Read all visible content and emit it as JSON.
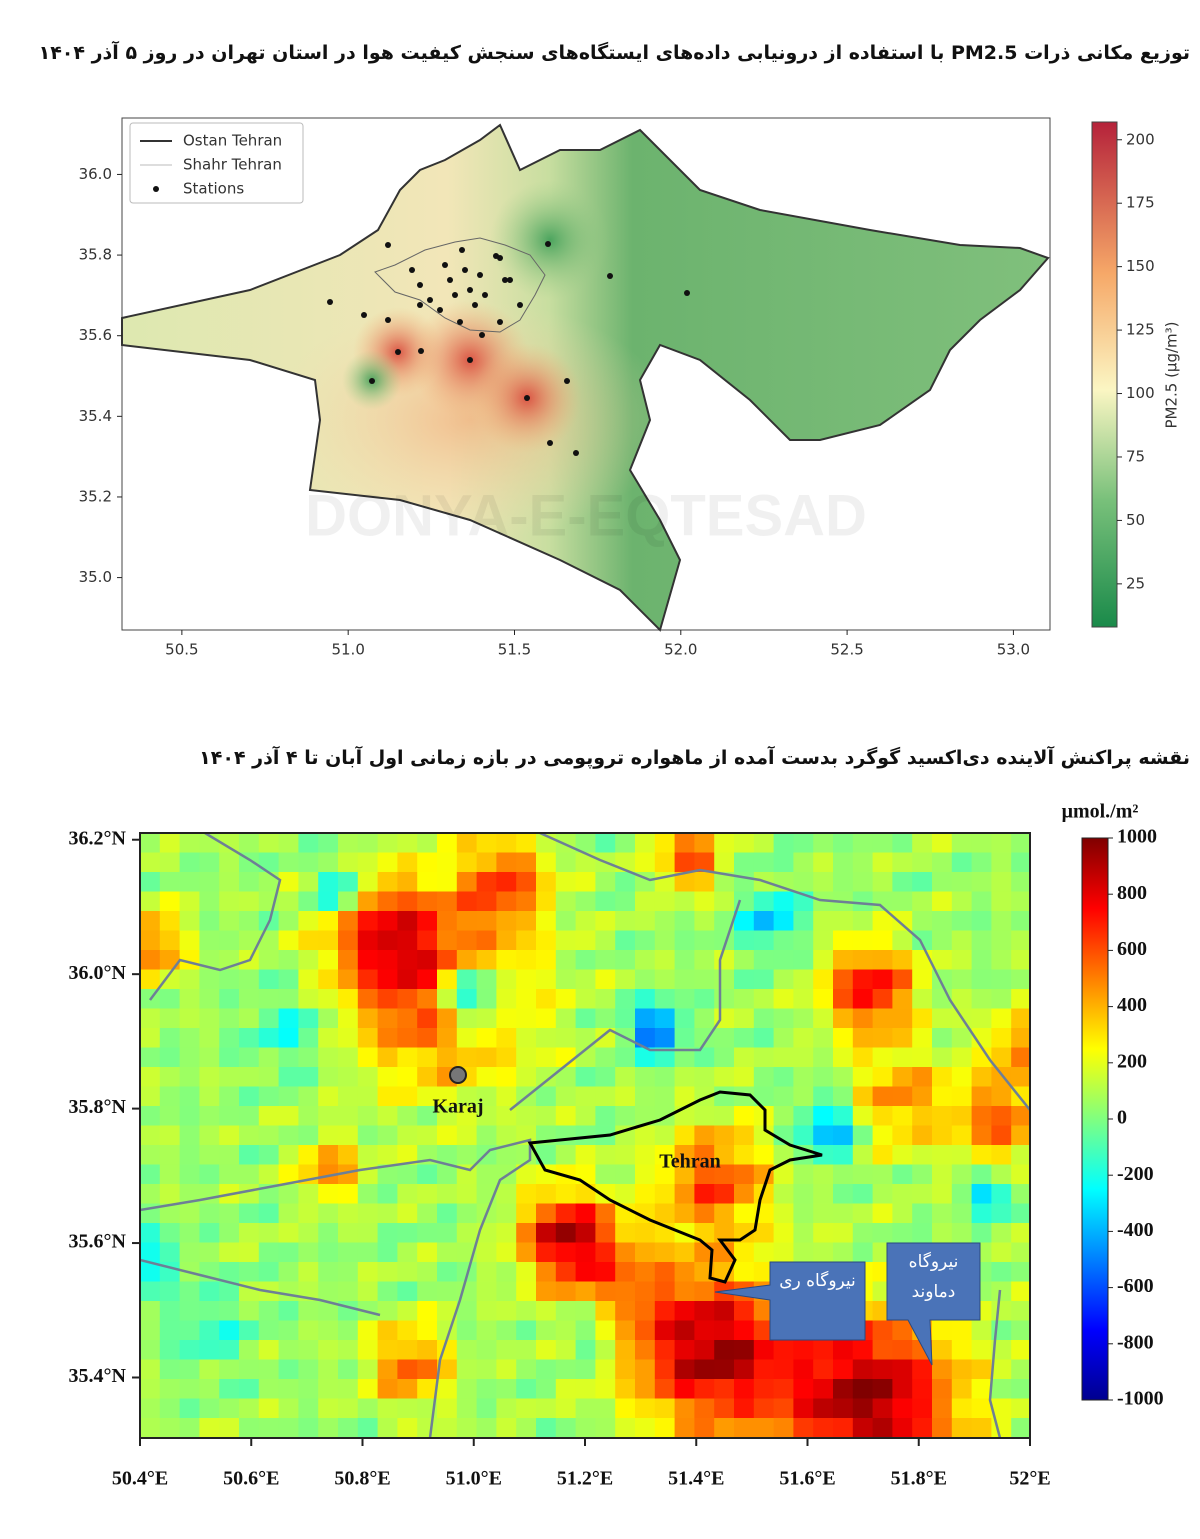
{
  "map_top": {
    "title": "توزیع مکانی ذرات PM2.5 با استفاده از درونیابی داده‌های ایستگاه‌های سنجش کیفیت هوا در استان تهران در روز ۵ آذر ۱۴۰۴",
    "legend": [
      "Ostan Tehran",
      "Shahr Tehran",
      "Stations"
    ],
    "xlim": [
      50.32,
      53.11
    ],
    "ylim": [
      34.87,
      36.14
    ],
    "xticks": [
      50.5,
      {
        "value": 51.0,
        "label": "51.0"
      },
      51.5,
      {
        "value": 52.0,
        "label": "52.0"
      },
      52.5,
      {
        "value": 53.0,
        "label": "53.0"
      }
    ],
    "yticks": [
      {
        "value": 35.0,
        "label": "35.0"
      },
      35.2,
      35.4,
      35.6,
      35.8,
      {
        "value": 36.0,
        "label": "36.0"
      }
    ],
    "colorbar_label": "PM2.5 (µg/m³)",
    "colorbar_lim": [
      8,
      207
    ],
    "colorbar_ticks": [
      25,
      50,
      75,
      100,
      125,
      150,
      175,
      200
    ],
    "watermark": "DONYA-E-EQTESAD"
  },
  "map_bottom": {
    "title": "نقشه پراکنش آلاینده دی‌اکسید گوگرد بدست آمده از ماهواره تروپومی در بازه زمانی اول آبان تا ۴ آذر ۱۴۰۴",
    "xlim": [
      50.4,
      52.0
    ],
    "ylim": [
      35.31,
      36.21
    ],
    "xticks": [
      {
        "value": 50.4,
        "label": "50.4°E"
      },
      {
        "value": 50.6,
        "label": "50.6°E"
      },
      {
        "value": 50.8,
        "label": "50.8°E"
      },
      {
        "value": 51.0,
        "label": "51.0°E"
      },
      {
        "value": 51.2,
        "label": "51.2°E"
      },
      {
        "value": 51.4,
        "label": "51.4°E"
      },
      {
        "value": 51.6,
        "label": "51.6°E"
      },
      {
        "value": 51.8,
        "label": "51.8°E"
      },
      {
        "value": 52.0,
        "label": "52°E"
      }
    ],
    "yticks": [
      {
        "value": 35.4,
        "label": "35.4°N"
      },
      {
        "value": 35.6,
        "label": "35.6°N"
      },
      {
        "value": 35.8,
        "label": "35.8°N"
      },
      {
        "value": 36.0,
        "label": "36.0°N"
      },
      {
        "value": 36.2,
        "label": "36.2°N"
      }
    ],
    "colorbar_unit": "μmol./m²",
    "colorbar_lim": [
      -1000,
      1000
    ],
    "colorbar_ticks": [
      1000,
      800,
      600,
      400,
      200,
      0,
      -200,
      -400,
      -600,
      -800,
      -1000
    ],
    "labels": [
      "Karaj",
      "Tehran"
    ],
    "callouts": [
      "نیروگاه ری",
      "نیروگاه دماوند"
    ]
  }
}
